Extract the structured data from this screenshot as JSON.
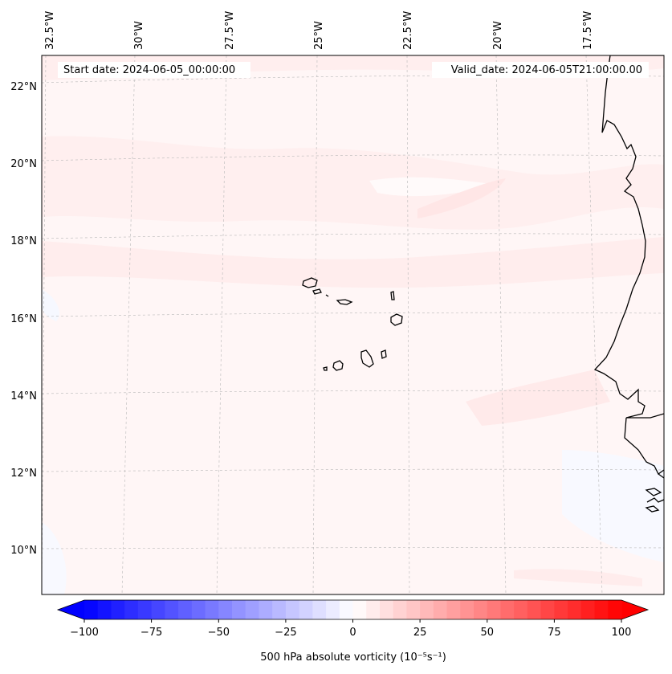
{
  "map": {
    "start_date": "Start date: 2024-06-05_00:00:00",
    "valid_date": "Valid_date: 2024-06-05T21:00:00.00",
    "longitude_labels": [
      "32.5°W",
      "30°W",
      "27.5°W",
      "25°W",
      "22.5°W",
      "20°W",
      "17.5°W"
    ],
    "latitude_labels": [
      "22°N",
      "20°N",
      "18°N",
      "16°N",
      "14°N",
      "12°N",
      "10°N"
    ]
  },
  "colorbar": {
    "label": "500 hPa absolute vorticity (10⁻⁵s⁻¹)",
    "ticks": [
      "−100",
      "−75",
      "−50",
      "−25",
      "0",
      "25",
      "50",
      "75",
      "100"
    ],
    "range": [
      -100,
      100
    ],
    "step": 5,
    "low_color": "#0000ff",
    "mid_color": "#ffffff",
    "high_color": "#ff0000"
  },
  "colors": {
    "field_background": "#fff6f6",
    "coastline": "#000000"
  }
}
